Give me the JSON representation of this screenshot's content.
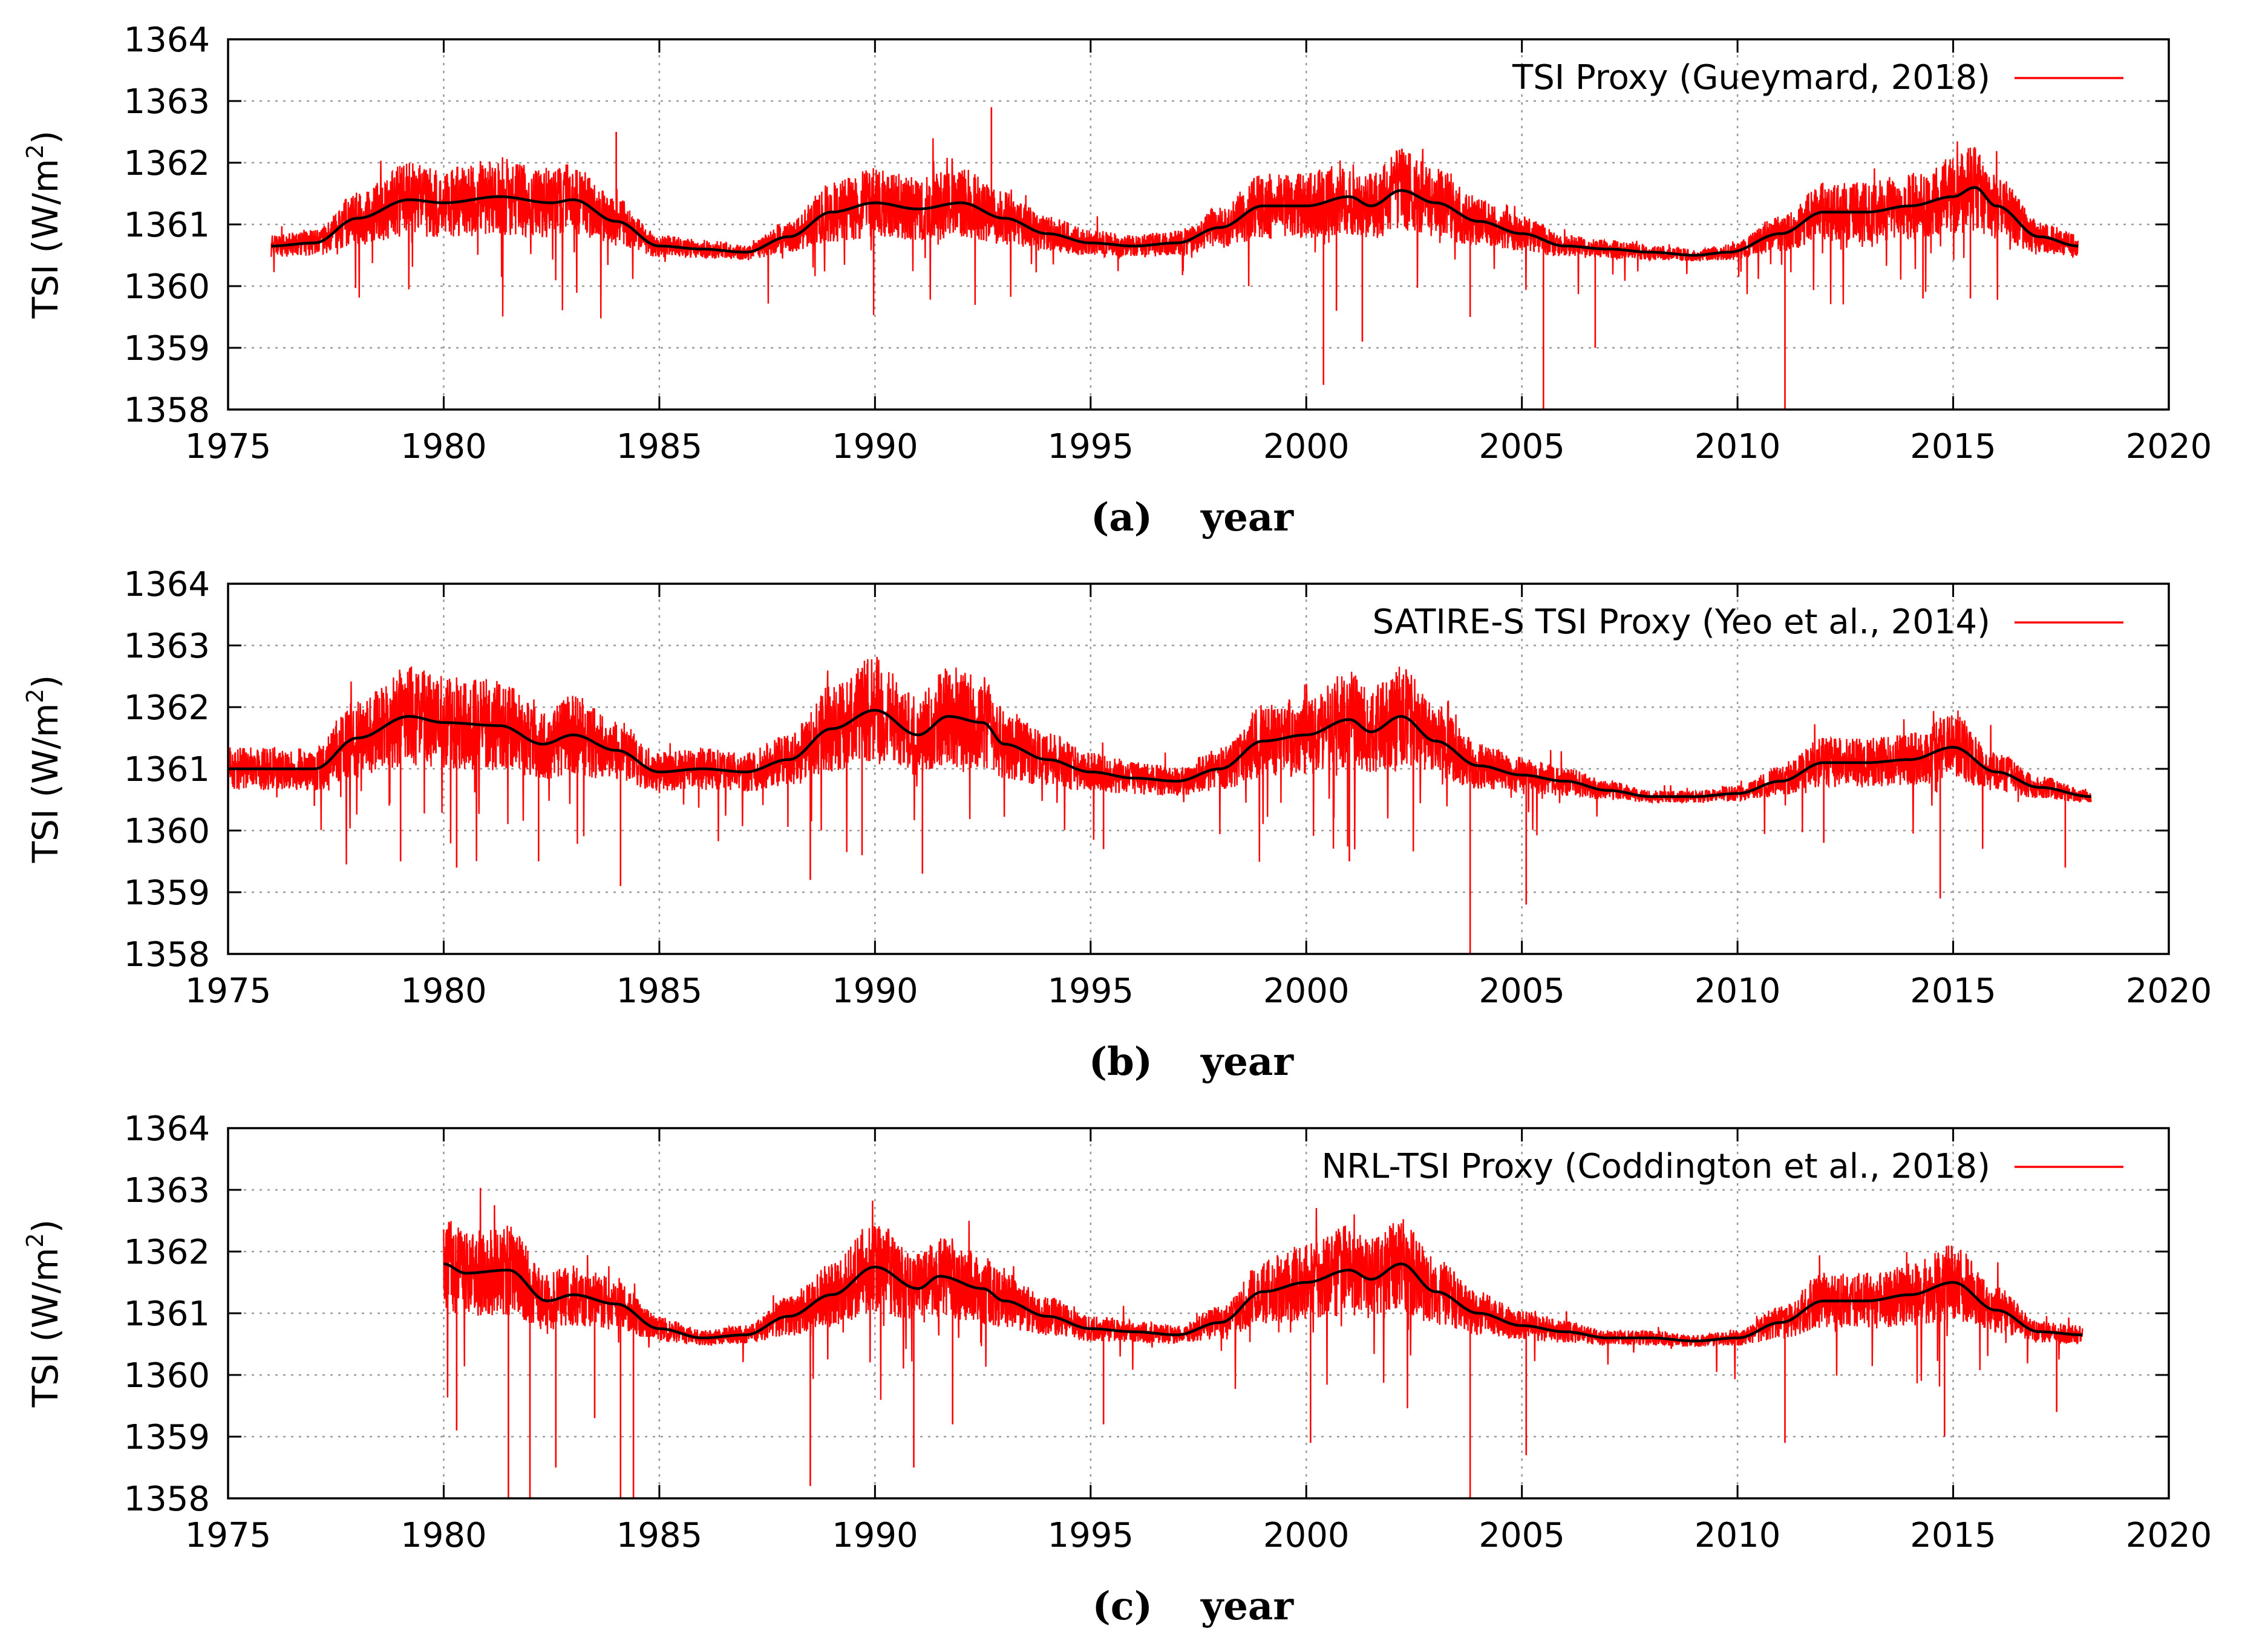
{
  "colors": {
    "proxy": "#ff0000",
    "smooth": "#000000",
    "grid": "#9a9a9a",
    "frame": "#000000"
  },
  "chart_data": [
    {
      "type": "line",
      "panel_label": "(a)",
      "xlabel": "year",
      "ylabel": "TSI (W/m",
      "ylabel_sup": "2",
      "ylabel_close": ")",
      "xlim": [
        1975,
        2020
      ],
      "ylim": [
        1358,
        1364
      ],
      "xticks": [
        "1975",
        "1980",
        "1985",
        "1990",
        "1995",
        "2000",
        "2005",
        "2010",
        "2015",
        "2020"
      ],
      "yticks": [
        "1358",
        "1359",
        "1360",
        "1361",
        "1362",
        "1363",
        "1364"
      ],
      "grid": true,
      "legend": "top-right",
      "series": [
        {
          "name": "TSI Proxy (Gueymard, 2018)",
          "color": "#ff0000",
          "kind": "daily",
          "x_range": [
            1976.0,
            2017.9
          ]
        },
        {
          "name": "smoothed",
          "color": "#000000",
          "kind": "smoothed",
          "in_legend": false,
          "x": [
            1976.0,
            1977.0,
            1978.0,
            1979.2,
            1980.0,
            1981.3,
            1982.5,
            1983.0,
            1984.0,
            1985.0,
            1986.0,
            1987.0,
            1988.0,
            1989.0,
            1990.0,
            1991.0,
            1992.0,
            1993.0,
            1994.0,
            1995.0,
            1996.0,
            1997.0,
            1998.0,
            1999.0,
            2000.0,
            2001.0,
            2001.5,
            2002.2,
            2003.0,
            2004.0,
            2005.0,
            2006.0,
            2007.0,
            2008.0,
            2009.0,
            2009.8,
            2011.0,
            2012.0,
            2013.0,
            2014.0,
            2015.0,
            2015.5,
            2016.0,
            2017.0,
            2017.9
          ],
          "y": [
            1360.65,
            1360.7,
            1361.1,
            1361.4,
            1361.35,
            1361.45,
            1361.35,
            1361.4,
            1361.05,
            1360.65,
            1360.6,
            1360.55,
            1360.8,
            1361.2,
            1361.35,
            1361.25,
            1361.35,
            1361.1,
            1360.85,
            1360.7,
            1360.65,
            1360.7,
            1360.95,
            1361.3,
            1361.3,
            1361.45,
            1361.3,
            1361.55,
            1361.35,
            1361.05,
            1360.85,
            1360.65,
            1360.6,
            1360.55,
            1360.5,
            1360.55,
            1360.85,
            1361.2,
            1361.2,
            1361.3,
            1361.45,
            1361.6,
            1361.3,
            1360.8,
            1360.65
          ]
        }
      ],
      "spikes": [
        [
          1984.0,
          1362.5
        ],
        [
          1992.7,
          1362.9
        ],
        [
          2000.4,
          1358.4
        ],
        [
          2000.7,
          1359.6
        ],
        [
          2001.3,
          1359.1
        ],
        [
          2003.8,
          1359.5
        ],
        [
          2005.5,
          1358.0
        ],
        [
          2006.7,
          1359.0
        ],
        [
          2011.1,
          1358.0
        ],
        [
          2014.3,
          1359.8
        ],
        [
          2015.4,
          1359.8
        ]
      ]
    },
    {
      "type": "line",
      "panel_label": "(b)",
      "xlabel": "year",
      "ylabel": "TSI (W/m",
      "ylabel_sup": "2",
      "ylabel_close": ")",
      "xlim": [
        1975,
        2020
      ],
      "ylim": [
        1358,
        1364
      ],
      "xticks": [
        "1975",
        "1980",
        "1985",
        "1990",
        "1995",
        "2000",
        "2005",
        "2010",
        "2015",
        "2020"
      ],
      "yticks": [
        "1358",
        "1359",
        "1360",
        "1361",
        "1362",
        "1363",
        "1364"
      ],
      "grid": true,
      "legend": "top-right",
      "series": [
        {
          "name": "SATIRE-S TSI Proxy (Yeo et al., 2014)",
          "color": "#ff0000",
          "kind": "daily",
          "x_range": [
            1975.0,
            2018.2
          ]
        },
        {
          "name": "smoothed",
          "color": "#000000",
          "kind": "smoothed",
          "in_legend": false,
          "x": [
            1975.0,
            1976.0,
            1977.0,
            1978.0,
            1979.2,
            1980.0,
            1981.3,
            1982.3,
            1983.0,
            1984.0,
            1985.0,
            1986.0,
            1987.0,
            1988.0,
            1989.0,
            1990.0,
            1991.0,
            1991.7,
            1992.5,
            1993.0,
            1994.0,
            1995.0,
            1996.0,
            1997.0,
            1998.0,
            1999.0,
            2000.0,
            2001.0,
            2001.5,
            2002.2,
            2003.0,
            2004.0,
            2005.0,
            2006.0,
            2007.0,
            2008.0,
            2009.0,
            2010.0,
            2011.0,
            2012.0,
            2013.0,
            2014.0,
            2015.0,
            2016.0,
            2017.0,
            2018.2
          ],
          "y": [
            1361.0,
            1361.0,
            1361.0,
            1361.5,
            1361.85,
            1361.75,
            1361.7,
            1361.4,
            1361.55,
            1361.3,
            1360.95,
            1361.0,
            1360.95,
            1361.15,
            1361.65,
            1361.95,
            1361.55,
            1361.85,
            1361.75,
            1361.4,
            1361.15,
            1360.95,
            1360.85,
            1360.8,
            1361.0,
            1361.45,
            1361.55,
            1361.8,
            1361.6,
            1361.85,
            1361.45,
            1361.05,
            1360.9,
            1360.8,
            1360.65,
            1360.55,
            1360.55,
            1360.6,
            1360.8,
            1361.1,
            1361.1,
            1361.15,
            1361.35,
            1360.95,
            1360.7,
            1360.55
          ]
        }
      ],
      "spikes": [
        [
          1977.0,
          1360.4
        ],
        [
          1979.0,
          1359.5
        ],
        [
          1980.3,
          1359.4
        ],
        [
          1982.2,
          1359.5
        ],
        [
          1984.1,
          1359.1
        ],
        [
          1988.5,
          1359.2
        ],
        [
          1989.7,
          1359.6
        ],
        [
          1991.1,
          1359.3
        ],
        [
          1995.3,
          1359.7
        ],
        [
          2001.0,
          1359.5
        ],
        [
          2003.8,
          1358.0
        ],
        [
          2005.1,
          1358.8
        ],
        [
          2012.0,
          1359.8
        ],
        [
          2014.7,
          1358.9
        ],
        [
          2017.6,
          1359.4
        ]
      ]
    },
    {
      "type": "line",
      "panel_label": "(c)",
      "xlabel": "year",
      "ylabel": "TSI (W/m",
      "ylabel_sup": "2",
      "ylabel_close": ")",
      "xlim": [
        1975,
        2020
      ],
      "ylim": [
        1358,
        1364
      ],
      "xticks": [
        "1975",
        "1980",
        "1985",
        "1990",
        "1995",
        "2000",
        "2005",
        "2010",
        "2015",
        "2020"
      ],
      "yticks": [
        "1358",
        "1359",
        "1360",
        "1361",
        "1362",
        "1363",
        "1364"
      ],
      "grid": true,
      "legend": "top-right",
      "series": [
        {
          "name": "NRL-TSI Proxy (Coddington et al., 2018)",
          "color": "#ff0000",
          "kind": "daily",
          "x_range": [
            1980.0,
            2018.0
          ]
        },
        {
          "name": "smoothed",
          "color": "#000000",
          "kind": "smoothed",
          "in_legend": false,
          "x": [
            1980.0,
            1980.5,
            1981.5,
            1982.4,
            1983.0,
            1984.0,
            1985.0,
            1986.0,
            1987.0,
            1988.0,
            1989.0,
            1990.0,
            1991.0,
            1991.5,
            1992.5,
            1993.0,
            1994.0,
            1995.0,
            1996.0,
            1997.0,
            1998.0,
            1999.0,
            2000.0,
            2001.0,
            2001.5,
            2002.2,
            2003.0,
            2004.0,
            2005.0,
            2006.0,
            2007.0,
            2008.0,
            2009.0,
            2010.0,
            2011.0,
            2012.0,
            2013.0,
            2014.0,
            2015.0,
            2016.0,
            2017.0,
            2018.0
          ],
          "y": [
            1361.8,
            1361.65,
            1361.7,
            1361.2,
            1361.3,
            1361.15,
            1360.75,
            1360.6,
            1360.65,
            1360.95,
            1361.3,
            1361.75,
            1361.4,
            1361.6,
            1361.4,
            1361.2,
            1360.95,
            1360.75,
            1360.7,
            1360.65,
            1360.85,
            1361.35,
            1361.5,
            1361.7,
            1361.55,
            1361.8,
            1361.35,
            1361.0,
            1360.8,
            1360.7,
            1360.6,
            1360.6,
            1360.55,
            1360.6,
            1360.85,
            1361.2,
            1361.2,
            1361.3,
            1361.5,
            1361.05,
            1360.7,
            1360.65
          ]
        }
      ],
      "spikes": [
        [
          1980.3,
          1359.1
        ],
        [
          1981.5,
          1358.0
        ],
        [
          1982.0,
          1358.0
        ],
        [
          1982.6,
          1358.5
        ],
        [
          1983.5,
          1359.3
        ],
        [
          1984.1,
          1358.0
        ],
        [
          1984.4,
          1358.0
        ],
        [
          1988.5,
          1358.2
        ],
        [
          1990.9,
          1358.5
        ],
        [
          1991.8,
          1359.2
        ],
        [
          1995.3,
          1359.2
        ],
        [
          2000.1,
          1358.9
        ],
        [
          2003.8,
          1358.0
        ],
        [
          2005.1,
          1358.7
        ],
        [
          2011.1,
          1358.9
        ],
        [
          2014.8,
          1359.0
        ],
        [
          2017.4,
          1359.4
        ]
      ]
    }
  ]
}
